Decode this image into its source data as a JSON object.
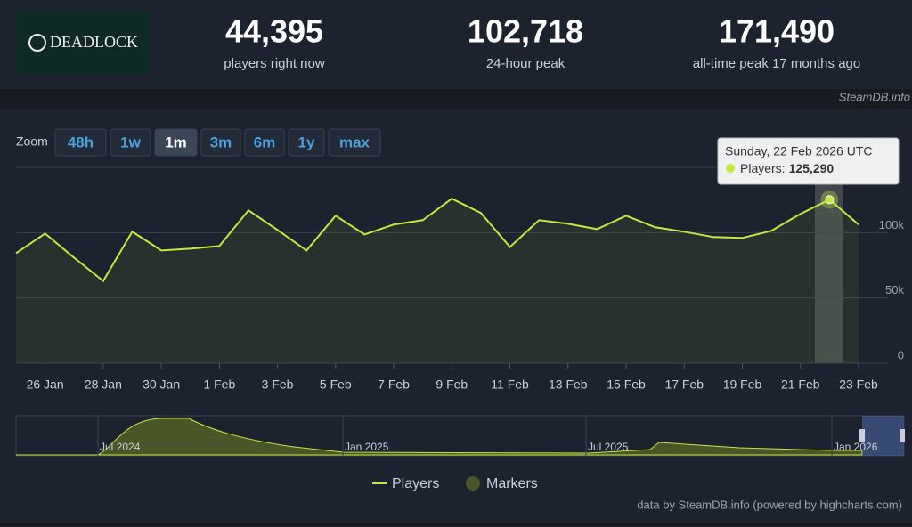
{
  "header": {
    "logo": "DEADLOCK",
    "stats": [
      {
        "value": "44,395",
        "label": "players right now"
      },
      {
        "value": "102,718",
        "label": "24-hour peak"
      },
      {
        "value": "171,490",
        "label": "all-time peak 17 months ago"
      }
    ],
    "source": "SteamDB.info"
  },
  "zoom": {
    "label": "Zoom",
    "buttons": [
      "48h",
      "1w",
      "1m",
      "3m",
      "6m",
      "1y",
      "max"
    ],
    "active": 2
  },
  "chart_data": {
    "type": "line",
    "categories": [
      null,
      "26 Jan",
      null,
      "28 Jan",
      null,
      "30 Jan",
      null,
      "1 Feb",
      null,
      "3 Feb",
      null,
      "5 Feb",
      null,
      "7 Feb",
      null,
      "9 Feb",
      null,
      "11 Feb",
      null,
      "13 Feb",
      null,
      "15 Feb",
      null,
      "17 Feb",
      null,
      "19 Feb",
      null,
      "21 Feb",
      null,
      "23 Feb"
    ],
    "series": [
      {
        "name": "Players",
        "color": "#c3ea3c",
        "values": [
          84300,
          99300,
          80800,
          63000,
          100700,
          86300,
          87700,
          89700,
          117100,
          102100,
          86300,
          113000,
          98600,
          106200,
          109600,
          126000,
          115100,
          89000,
          109600,
          106800,
          102700,
          113000,
          104100,
          100700,
          96600,
          95900,
          101400,
          114400,
          125290,
          106200
        ],
        "value_labels": [
          null,
          null,
          null,
          null,
          null,
          null,
          null,
          null,
          null,
          null,
          null,
          null,
          null,
          null,
          null,
          null,
          null,
          null,
          null,
          null,
          null,
          null,
          null,
          null,
          null,
          null,
          null,
          null,
          "125,290",
          null
        ]
      }
    ],
    "ylim": [
      0,
      150000
    ],
    "yticks": [
      0,
      {
        "value": 50000,
        "label": "50k"
      },
      {
        "value": 100000,
        "label": "100k"
      }
    ],
    "grid": true,
    "tooltip": {
      "index": 28,
      "date": "Sunday, 22 Feb 2026 UTC",
      "series_label": "Players:"
    },
    "markers_label": "Markers",
    "navigator_labels": [
      "Jul 2024",
      "Jan 2025",
      "Jul 2025",
      "Jan 2026"
    ],
    "credits": "data by SteamDB.info (powered by highcharts.com)"
  }
}
